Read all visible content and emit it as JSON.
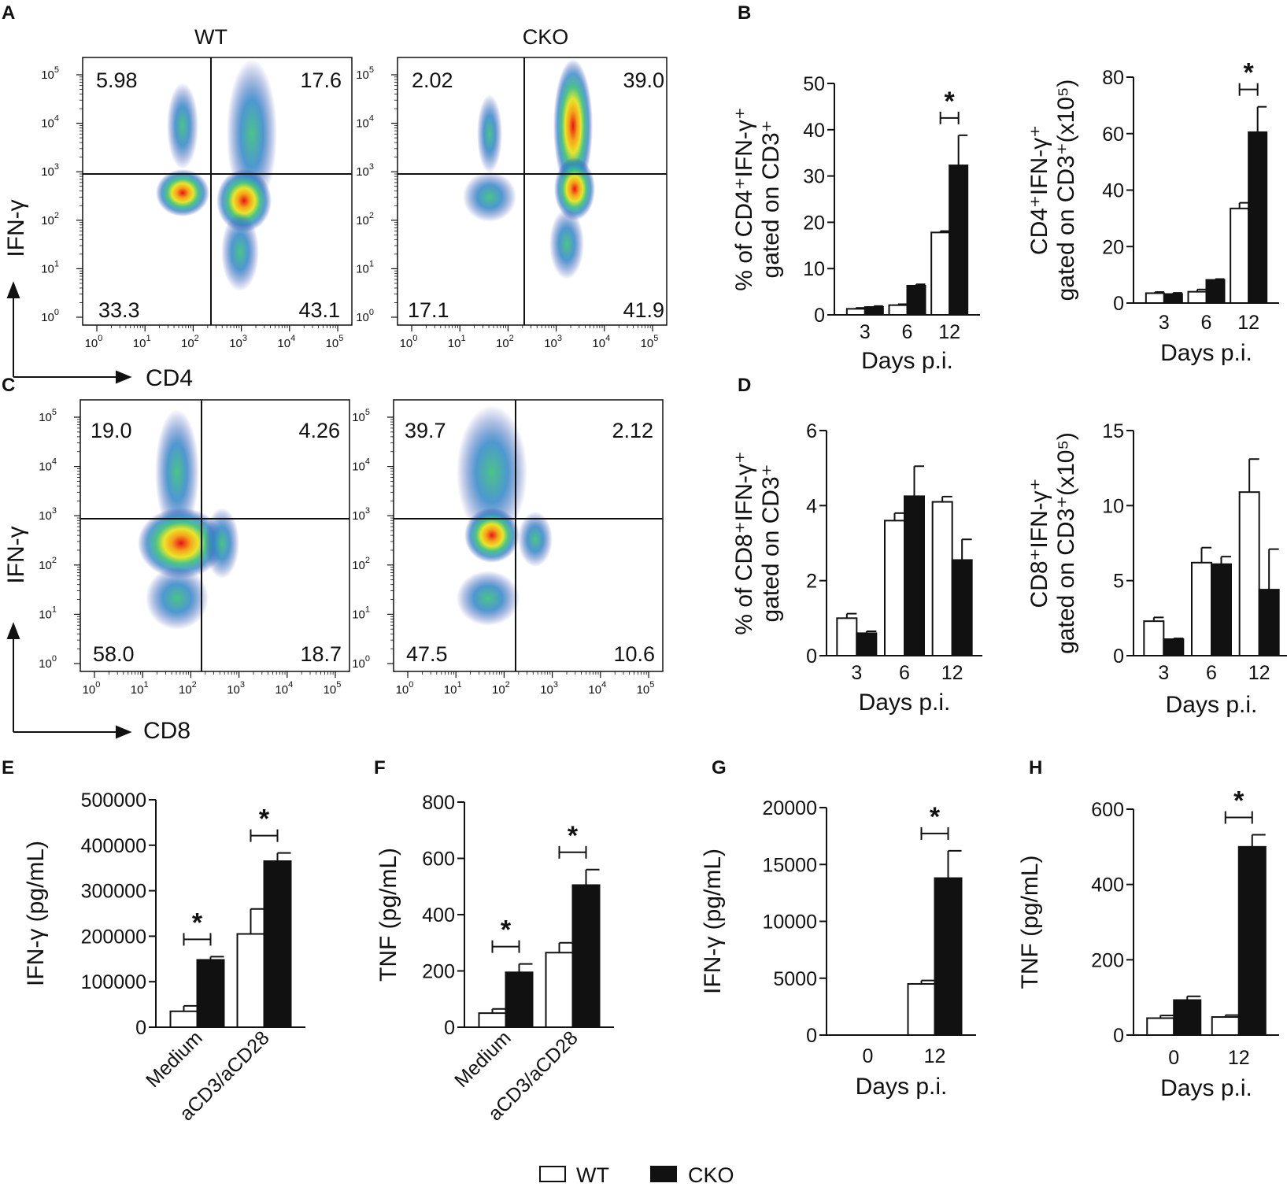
{
  "legend": {
    "wt_label": "WT",
    "cko_label": "CKO"
  },
  "flow": {
    "A": {
      "label": "A",
      "x_marker": "CD4",
      "y_marker": "IFN-γ",
      "plots": [
        {
          "title": "WT",
          "ul": "5.98",
          "ur": "17.6",
          "ll": "33.3",
          "lr": "43.1"
        },
        {
          "title": "CKO",
          "ul": "2.02",
          "ur": "39.0",
          "ll": "17.1",
          "lr": "41.9"
        }
      ]
    },
    "C": {
      "label": "C",
      "x_marker": "CD8",
      "y_marker": "IFN-γ",
      "plots": [
        {
          "title": "",
          "ul": "19.0",
          "ur": "4.26",
          "ll": "58.0",
          "lr": "18.7"
        },
        {
          "title": "",
          "ul": "39.7",
          "ur": "2.12",
          "ll": "47.5",
          "lr": "10.6"
        }
      ]
    },
    "log_ticks": [
      "10",
      "10",
      "10",
      "10",
      "10",
      "10"
    ],
    "log_exps": [
      "0",
      "1",
      "2",
      "3",
      "4",
      "5"
    ]
  },
  "chart_data": [
    {
      "panel": "B",
      "type": "bar",
      "categories": [
        "3",
        "6",
        "12"
      ],
      "xlabel": "Days p.i.",
      "ylabel": [
        "% of CD4⁺IFN-γ⁺",
        "gated on CD3⁺"
      ],
      "ylim": [
        0,
        50
      ],
      "yticks": [
        "0",
        "10",
        "20",
        "30",
        "40",
        "50"
      ],
      "series": [
        {
          "name": "WT",
          "values": [
            1.3,
            2.1,
            17.8
          ],
          "errors": [
            0.2,
            0.2,
            0.3
          ]
        },
        {
          "name": "CKO",
          "values": [
            1.7,
            6.3,
            32.3
          ],
          "errors": [
            0.2,
            0.3,
            6.5
          ]
        }
      ],
      "significance": [
        {
          "category": "12",
          "mark": "*"
        }
      ]
    },
    {
      "panel": "B2",
      "type": "bar",
      "categories": [
        "3",
        "6",
        "12"
      ],
      "xlabel": "Days p.i.",
      "ylabel": [
        "CD4⁺IFN-γ⁺",
        "gated on CD3⁺(x10⁵)"
      ],
      "ylim": [
        0,
        80
      ],
      "yticks": [
        "0",
        "20",
        "40",
        "60",
        "80"
      ],
      "series": [
        {
          "name": "WT",
          "values": [
            3.5,
            4.0,
            33.5
          ],
          "errors": [
            0.4,
            0.8,
            2.0
          ]
        },
        {
          "name": "CKO",
          "values": [
            3.2,
            8.2,
            60.5
          ],
          "errors": [
            0.4,
            0.3,
            9.0
          ]
        }
      ],
      "significance": [
        {
          "category": "12",
          "mark": "*"
        }
      ]
    },
    {
      "panel": "D",
      "type": "bar",
      "categories": [
        "3",
        "6",
        "12"
      ],
      "xlabel": "Days p.i.",
      "ylabel": [
        "% of CD8⁺IFN-γ⁺",
        "gated on CD3⁺"
      ],
      "ylim": [
        0,
        6
      ],
      "yticks": [
        "0",
        "2",
        "4",
        "6"
      ],
      "series": [
        {
          "name": "WT",
          "values": [
            1.0,
            3.6,
            4.1
          ],
          "errors": [
            0.12,
            0.2,
            0.14
          ]
        },
        {
          "name": "CKO",
          "values": [
            0.6,
            4.25,
            2.55
          ],
          "errors": [
            0.05,
            0.8,
            0.55
          ]
        }
      ]
    },
    {
      "panel": "D2",
      "type": "bar",
      "categories": [
        "3",
        "6",
        "12"
      ],
      "xlabel": "Days p.i.",
      "ylabel": [
        "CD8⁺IFN-γ⁺",
        "gated on CD3⁺(x10⁵)"
      ],
      "ylim": [
        0,
        15
      ],
      "yticks": [
        "0",
        "5",
        "10",
        "15"
      ],
      "series": [
        {
          "name": "WT",
          "values": [
            2.3,
            6.2,
            10.9
          ],
          "errors": [
            0.25,
            1.0,
            2.2
          ]
        },
        {
          "name": "CKO",
          "values": [
            1.1,
            6.1,
            4.4
          ],
          "errors": [
            0.05,
            0.5,
            2.7
          ]
        }
      ]
    },
    {
      "panel": "E",
      "type": "bar",
      "categories": [
        "Medium",
        "aCD3/aCD28"
      ],
      "xlabel": "",
      "ylabel": [
        "IFN-γ (pg/mL)"
      ],
      "ylim": [
        0,
        500000
      ],
      "yticks": [
        "0",
        "100000",
        "200000",
        "300000",
        "400000",
        "500000"
      ],
      "series": [
        {
          "name": "WT",
          "values": [
            35000,
            205000
          ],
          "errors": [
            12000,
            55000
          ]
        },
        {
          "name": "CKO",
          "values": [
            148000,
            365000
          ],
          "errors": [
            7000,
            18000
          ]
        }
      ],
      "significance": [
        {
          "category": "Medium",
          "mark": "*"
        },
        {
          "category": "aCD3/aCD28",
          "mark": "*"
        }
      ]
    },
    {
      "panel": "F",
      "type": "bar",
      "categories": [
        "Medium",
        "aCD3/aCD28"
      ],
      "xlabel": "",
      "ylabel": [
        "TNF  (pg/mL)"
      ],
      "ylim": [
        0,
        800
      ],
      "yticks": [
        "0",
        "200",
        "400",
        "600",
        "800"
      ],
      "series": [
        {
          "name": "WT",
          "values": [
            50,
            265
          ],
          "errors": [
            15,
            35
          ]
        },
        {
          "name": "CKO",
          "values": [
            195,
            505
          ],
          "errors": [
            30,
            55
          ]
        }
      ],
      "significance": [
        {
          "category": "Medium",
          "mark": "*"
        },
        {
          "category": "aCD3/aCD28",
          "mark": "*"
        }
      ]
    },
    {
      "panel": "G",
      "type": "bar",
      "categories": [
        "0",
        "12"
      ],
      "xlabel": "Days p.i.",
      "ylabel": [
        "IFN-γ (pg/mL)"
      ],
      "ylim": [
        0,
        20000
      ],
      "yticks": [
        "0",
        "5000",
        "10000",
        "15000",
        "20000"
      ],
      "series": [
        {
          "name": "WT",
          "values": [
            0,
            4500
          ],
          "errors": [
            0,
            300
          ]
        },
        {
          "name": "CKO",
          "values": [
            0,
            13800
          ],
          "errors": [
            0,
            2400
          ]
        }
      ],
      "significance": [
        {
          "category": "12",
          "mark": "*"
        }
      ]
    },
    {
      "panel": "H",
      "type": "bar",
      "categories": [
        "0",
        "12"
      ],
      "xlabel": "Days p.i.",
      "ylabel": [
        "TNF (pg/mL)"
      ],
      "ylim": [
        0,
        600
      ],
      "yticks": [
        "0",
        "200",
        "400",
        "600"
      ],
      "series": [
        {
          "name": "WT",
          "values": [
            45,
            48
          ],
          "errors": [
            7,
            5
          ]
        },
        {
          "name": "CKO",
          "values": [
            93,
            500
          ],
          "errors": [
            10,
            32
          ]
        }
      ],
      "significance": [
        {
          "category": "12",
          "mark": "*"
        }
      ]
    }
  ]
}
